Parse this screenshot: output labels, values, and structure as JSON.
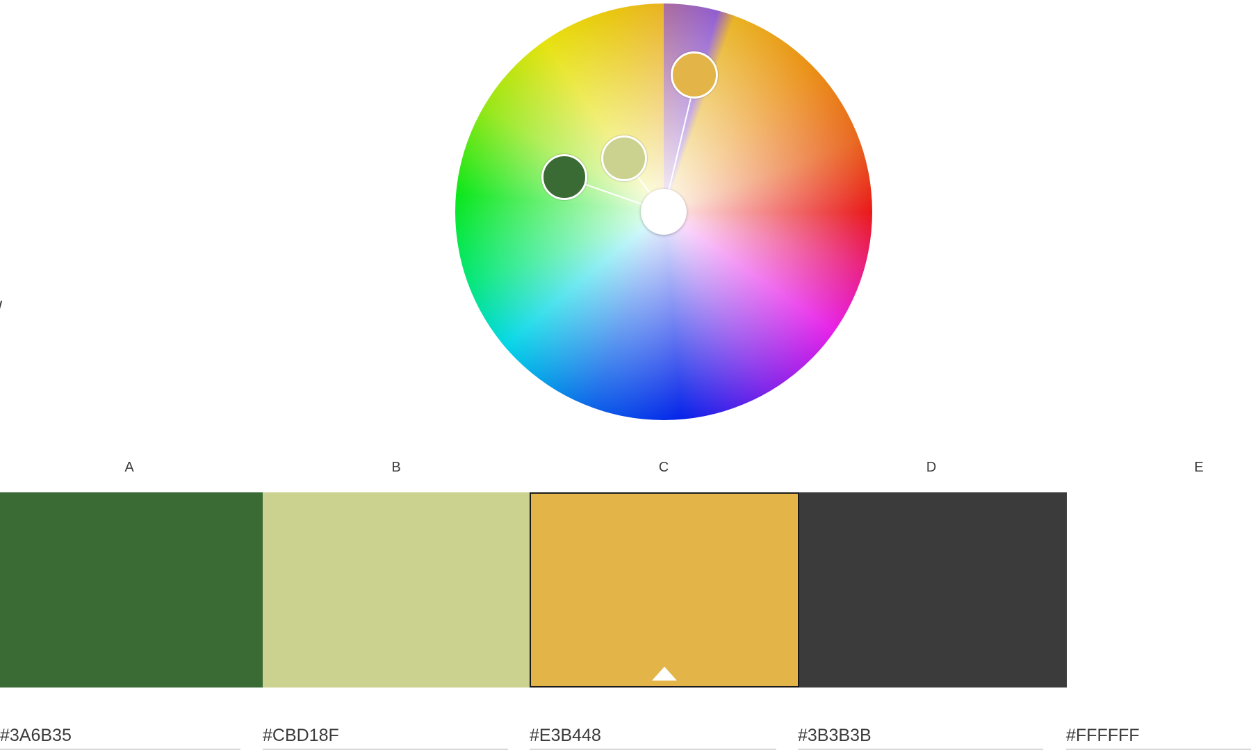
{
  "stray_text": "/",
  "wheel": {
    "mode": "color-wheel",
    "handles": [
      {
        "name": "handle-a",
        "color": "#3A6B35"
      },
      {
        "name": "handle-b",
        "color": "#CBD18F"
      },
      {
        "name": "handle-c",
        "color": "#E3B448"
      }
    ]
  },
  "swatches": [
    {
      "label": "A",
      "hex": "#3A6B35",
      "selected": false
    },
    {
      "label": "B",
      "hex": "#CBD18F",
      "selected": false
    },
    {
      "label": "C",
      "hex": "#E3B448",
      "selected": true
    },
    {
      "label": "D",
      "hex": "#3B3B3B",
      "selected": false
    },
    {
      "label": "E",
      "hex": "#FFFFFF",
      "selected": false
    }
  ],
  "colors": {
    "text": "#3b3b3b",
    "selected_border": "#1a1a1a",
    "field_underline": "#d9d9d9"
  }
}
